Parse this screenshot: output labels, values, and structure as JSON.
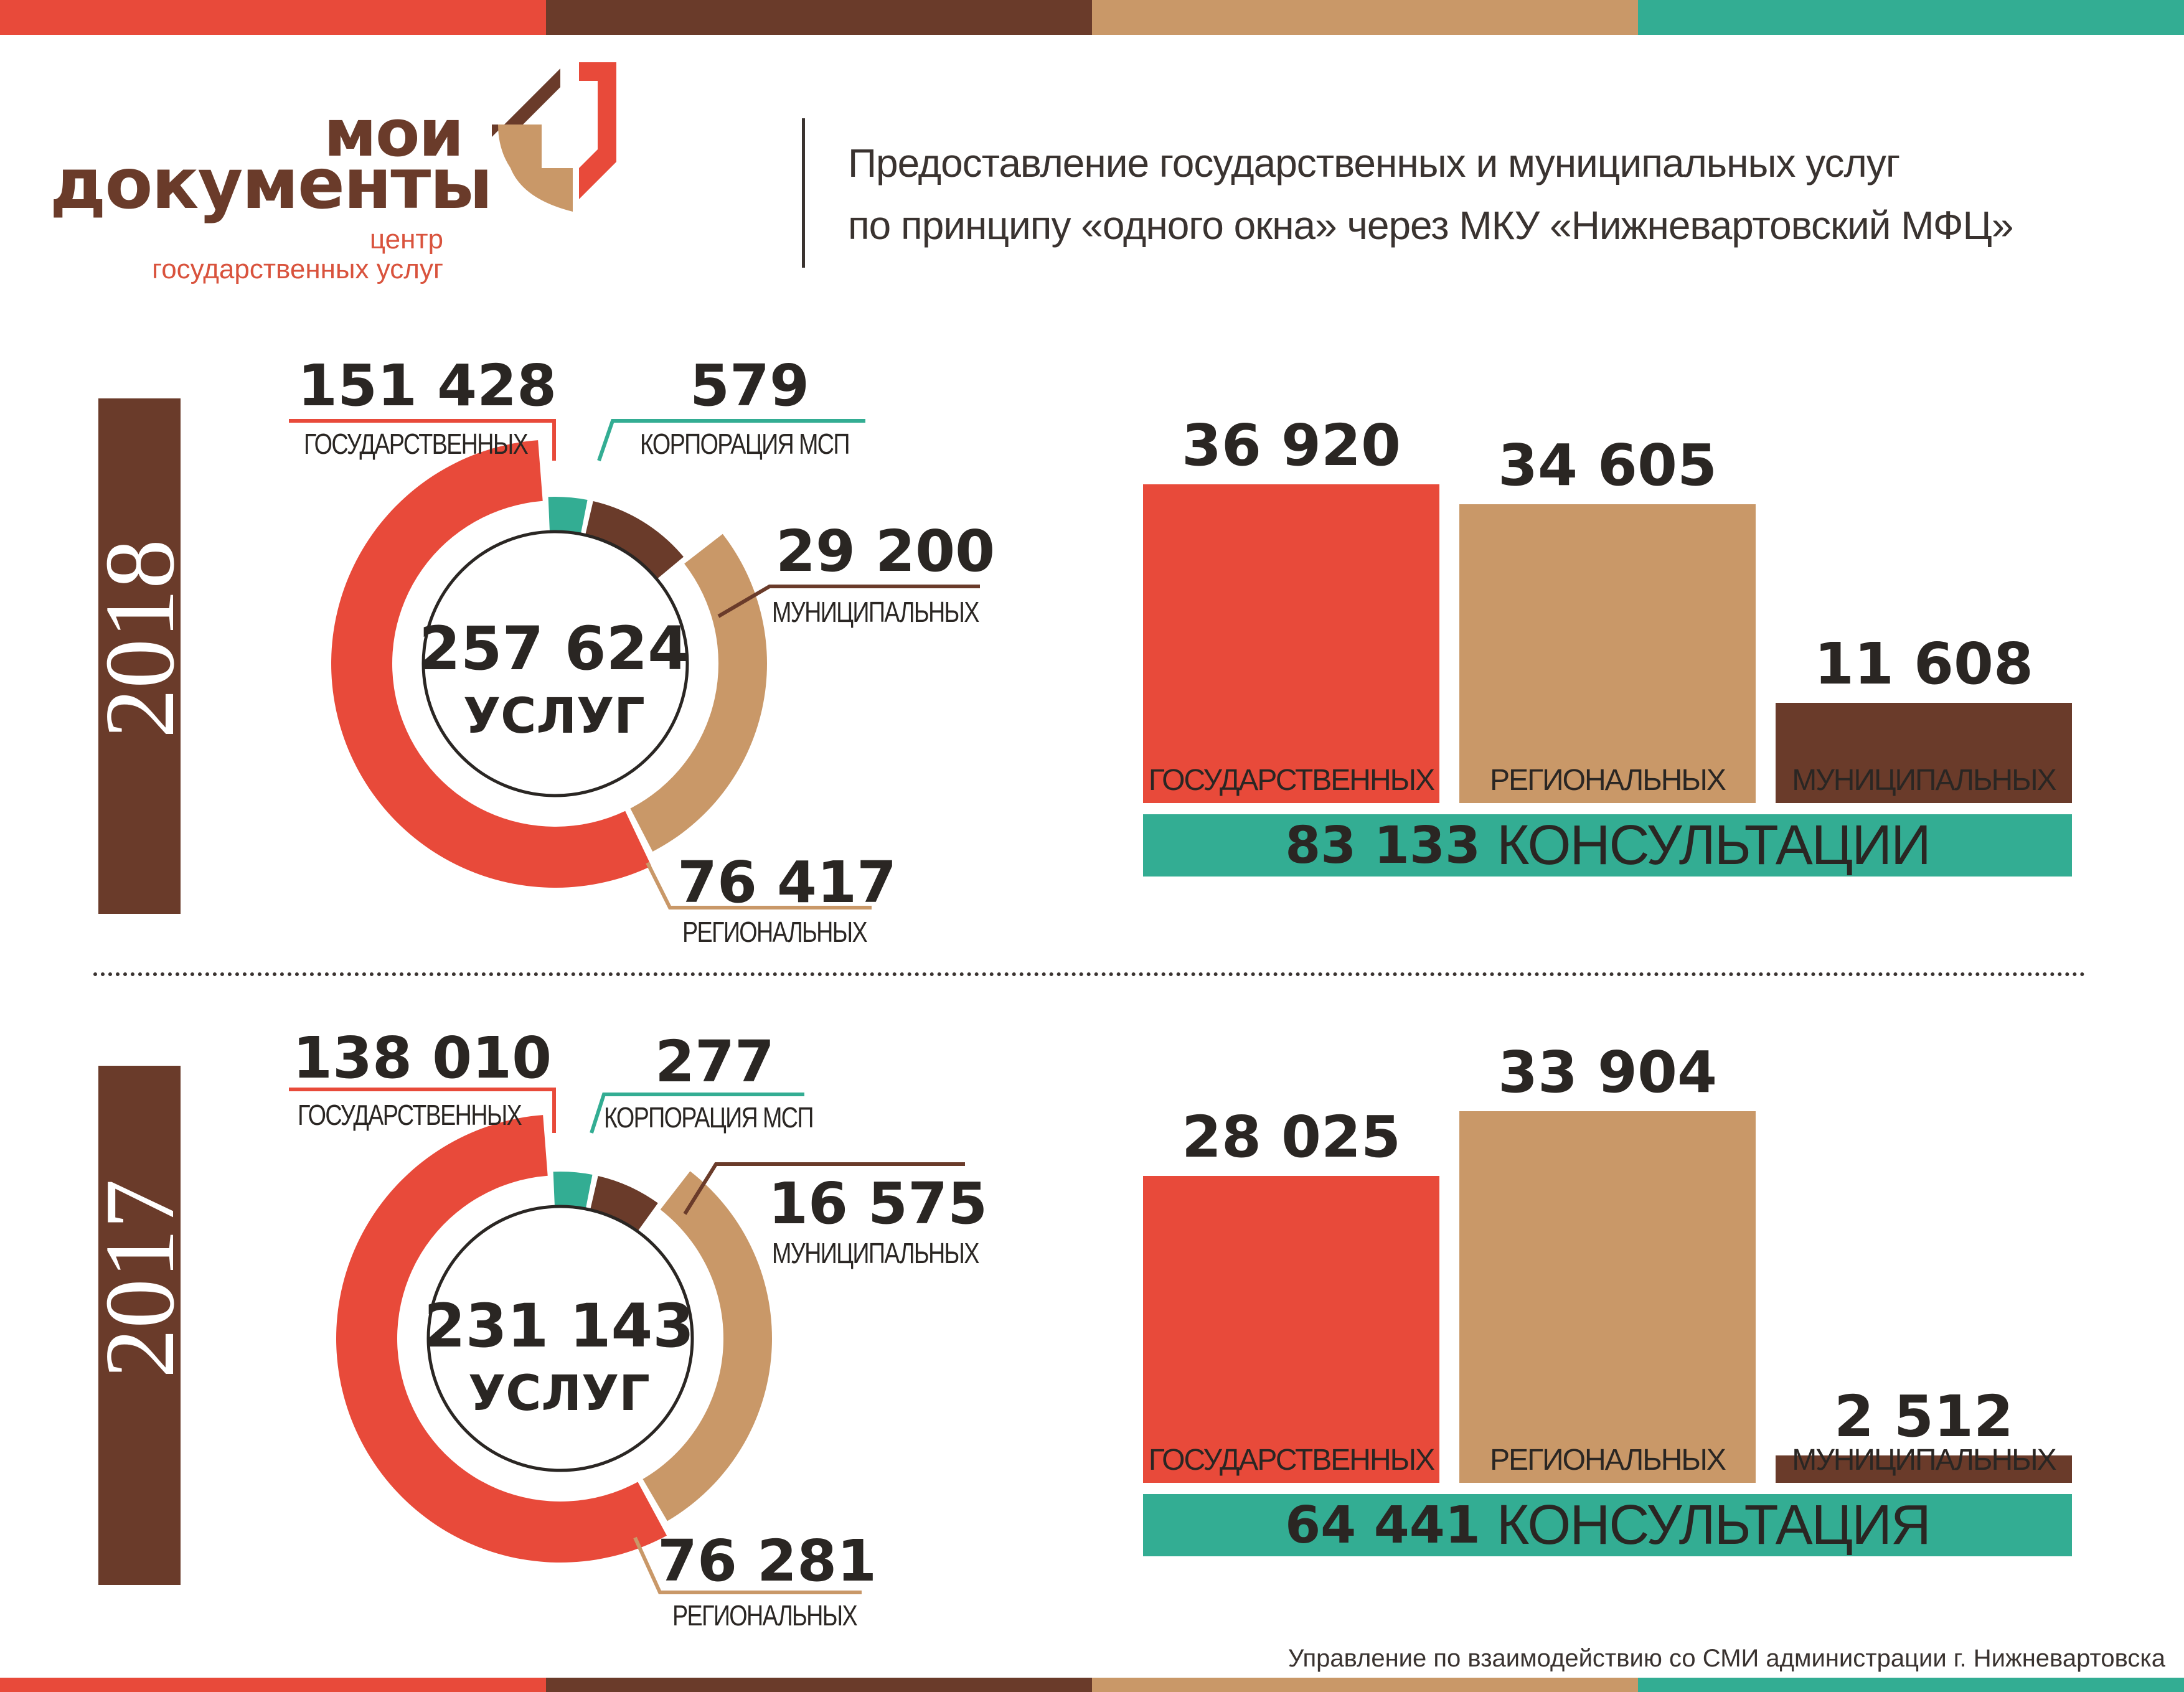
{
  "colors": {
    "red": "#e84a3a",
    "brown": "#6a3b2a",
    "tan": "#c99868",
    "teal": "#33ad93",
    "dark": "#2a2623"
  },
  "logo": {
    "line1": "мои",
    "line2": "документы",
    "sub1": "центр",
    "sub2": "государственных услуг"
  },
  "header": {
    "title_line1": "Предоставление государственных и муниципальных услуг",
    "title_line2": "по принципу «одного окна» через МКУ «Нижневартовский МФЦ»"
  },
  "years": {
    "y2018": "2018",
    "y2017": "2017"
  },
  "chart_data": [
    {
      "type": "pie",
      "year": "2018",
      "total": "257 624",
      "total_unit": "УСЛУГ",
      "slices": [
        {
          "label": "ГОСУДАРСТВЕННЫХ",
          "value": 151428,
          "value_text": "151 428",
          "color": "#e84a3a"
        },
        {
          "label": "КОРПОРАЦИЯ МСП",
          "value": 579,
          "value_text": "579",
          "color": "#33ad93"
        },
        {
          "label": "МУНИЦИПАЛЬНЫХ",
          "value": 29200,
          "value_text": "29 200",
          "color": "#6a3b2a"
        },
        {
          "label": "РЕГИОНАЛЬНЫХ",
          "value": 76417,
          "value_text": "76 417",
          "color": "#c99868"
        }
      ]
    },
    {
      "type": "bar",
      "year": "2018",
      "categories": [
        "ГОСУДАРСТВЕННЫХ",
        "РЕГИОНАЛЬНЫХ",
        "МУНИЦИПАЛЬНЫХ"
      ],
      "values": [
        36920,
        34605,
        11608
      ],
      "value_texts": [
        "36 920",
        "34 605",
        "11 608"
      ],
      "colors": [
        "#e84a3a",
        "#c99868",
        "#6a3b2a"
      ],
      "consult_value": "83 133",
      "consult_label": "КОНСУЛЬТАЦИИ"
    },
    {
      "type": "pie",
      "year": "2017",
      "total": "231 143",
      "total_unit": "УСЛУГ",
      "slices": [
        {
          "label": "ГОСУДАРСТВЕННЫХ",
          "value": 138010,
          "value_text": "138 010",
          "color": "#e84a3a"
        },
        {
          "label": "КОРПОРАЦИЯ МСП",
          "value": 277,
          "value_text": "277",
          "color": "#33ad93"
        },
        {
          "label": "МУНИЦИПАЛЬНЫХ",
          "value": 16575,
          "value_text": "16 575",
          "color": "#6a3b2a"
        },
        {
          "label": "РЕГИОНАЛЬНЫХ",
          "value": 76281,
          "value_text": "76 281",
          "color": "#c99868"
        }
      ]
    },
    {
      "type": "bar",
      "year": "2017",
      "categories": [
        "ГОСУДАРСТВЕННЫХ",
        "РЕГИОНАЛЬНЫХ",
        "МУНИЦИПАЛЬНЫХ"
      ],
      "values": [
        28025,
        33904,
        2512
      ],
      "value_texts": [
        "28 025",
        "33 904",
        "2 512"
      ],
      "colors": [
        "#e84a3a",
        "#c99868",
        "#6a3b2a"
      ],
      "consult_value": "64 441",
      "consult_label": "КОНСУЛЬТАЦИЯ"
    }
  ],
  "footer": "Управление по взаимодействию со СМИ администрации г. Нижневартовска"
}
